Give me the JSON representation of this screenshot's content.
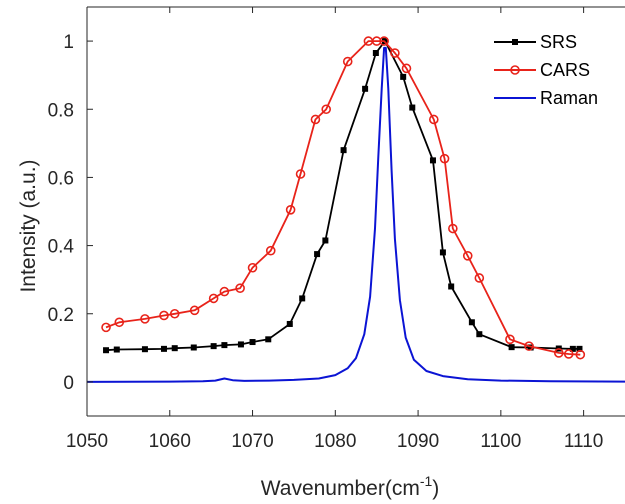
{
  "chart_data": {
    "type": "line",
    "title": "",
    "xlabel": "Wavenumber(cm",
    "xlabel_superscript": "-1",
    "xlabel_suffix": ")",
    "ylabel": "Intensity (a.u.)",
    "xlim": [
      1050,
      1115
    ],
    "ylim": [
      -0.1,
      1.1
    ],
    "xticks": [
      1050,
      1060,
      1070,
      1080,
      1090,
      1100,
      1110
    ],
    "yticks": [
      0,
      0.2,
      0.4,
      0.6,
      0.8,
      1
    ],
    "ytick_labels": [
      "0",
      "0.2",
      "0.4",
      "0.6",
      "0.8",
      "1"
    ],
    "grid": false,
    "legend_position": "top-right",
    "series": [
      {
        "name": "SRS",
        "color": "#000000",
        "marker": "square",
        "x": [
          1052.3,
          1053.6,
          1057.0,
          1059.3,
          1060.6,
          1062.9,
          1065.3,
          1066.6,
          1068.6,
          1070.0,
          1071.9,
          1074.5,
          1076.0,
          1077.8,
          1078.8,
          1081.0,
          1083.6,
          1084.9,
          1086.0,
          1088.2,
          1089.3,
          1091.8,
          1093.0,
          1094.0,
          1096.5,
          1097.4,
          1101.3,
          1103.6,
          1107.0,
          1108.7,
          1109.5
        ],
        "y": [
          0.093,
          0.095,
          0.096,
          0.097,
          0.099,
          0.101,
          0.105,
          0.108,
          0.11,
          0.117,
          0.125,
          0.17,
          0.245,
          0.375,
          0.415,
          0.68,
          0.86,
          0.965,
          1.0,
          0.895,
          0.805,
          0.65,
          0.38,
          0.28,
          0.175,
          0.14,
          0.102,
          0.101,
          0.098,
          0.097,
          0.097
        ]
      },
      {
        "name": "CARS",
        "color": "#e8231a",
        "marker": "circle",
        "x": [
          1052.3,
          1053.9,
          1057.0,
          1059.3,
          1060.6,
          1063.0,
          1065.3,
          1066.6,
          1068.5,
          1070.0,
          1072.2,
          1074.6,
          1075.8,
          1077.6,
          1078.9,
          1081.5,
          1084.0,
          1085.0,
          1085.9,
          1087.2,
          1088.6,
          1091.9,
          1093.2,
          1094.2,
          1096.0,
          1097.4,
          1101.1,
          1103.4,
          1107.0,
          1108.2,
          1109.6
        ],
        "y": [
          0.16,
          0.175,
          0.185,
          0.195,
          0.2,
          0.21,
          0.245,
          0.265,
          0.275,
          0.335,
          0.385,
          0.505,
          0.61,
          0.77,
          0.8,
          0.94,
          1.0,
          1.0,
          1.0,
          0.965,
          0.92,
          0.77,
          0.655,
          0.45,
          0.37,
          0.305,
          0.125,
          0.105,
          0.085,
          0.082,
          0.08
        ]
      },
      {
        "name": "Raman",
        "color": "#0b14d4",
        "marker": "none",
        "x": [
          1050,
          1060,
          1064,
          1065.5,
          1066.6,
          1067.6,
          1069,
          1072,
          1075,
          1078,
          1080,
          1081.5,
          1082.5,
          1083.5,
          1084.2,
          1084.8,
          1085.2,
          1085.6,
          1085.9,
          1086.1,
          1086.4,
          1086.8,
          1087.2,
          1087.8,
          1088.5,
          1089.5,
          1091,
          1093,
          1096,
          1100,
          1106,
          1115
        ],
        "y": [
          0.0,
          0.001,
          0.002,
          0.004,
          0.01,
          0.005,
          0.003,
          0.004,
          0.006,
          0.01,
          0.02,
          0.04,
          0.07,
          0.14,
          0.25,
          0.45,
          0.66,
          0.86,
          0.98,
          0.98,
          0.86,
          0.62,
          0.42,
          0.24,
          0.13,
          0.065,
          0.032,
          0.017,
          0.008,
          0.004,
          0.002,
          0.001
        ]
      }
    ]
  }
}
